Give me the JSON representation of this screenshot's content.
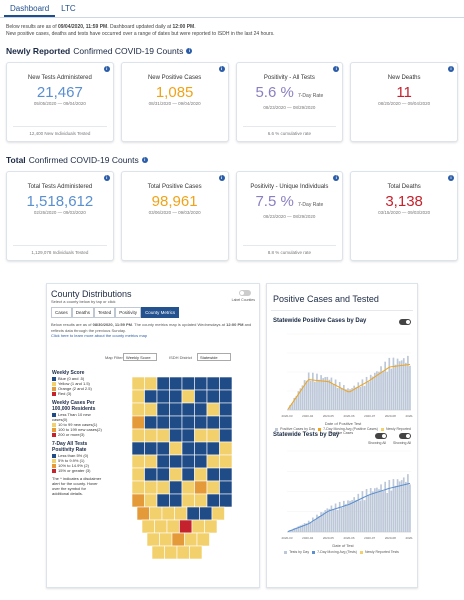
{
  "nav": {
    "tabs": [
      "Dashboard",
      "LTC"
    ],
    "active": "Dashboard"
  },
  "intro": {
    "line1_a": "Below results are as of",
    "line1_date": "09/04/2020, 11:59 PM",
    "line1_b": ". Dashboard updated daily at",
    "line1_time": "12:00 PM",
    "line2": "New positive cases, deaths and tests have occurred over a range of dates but were reported to ISDH in the last 24 hours."
  },
  "newly": {
    "title_bold": "Newly Reported",
    "title_light": "Confirmed COVID-19 Counts",
    "cards": [
      {
        "label": "New Tests Administered",
        "value": "21,467",
        "dates": "05/05/2020 — 09/04/2020",
        "foot": "12,400 New Individuals Tested",
        "color": "#5a8fd0"
      },
      {
        "label": "New Positive Cases",
        "value": "1,085",
        "dates": "08/31/2020 — 09/04/2020",
        "foot": "",
        "color": "#f0a318"
      },
      {
        "label": "Positivity - All Tests",
        "value": "5.6 %",
        "suffix": "7-Day Rate",
        "dates": "08/23/2020 — 08/29/2020",
        "foot": "6.6 % cumulative rate",
        "color": "#8a7fc0"
      },
      {
        "label": "New Deaths",
        "value": "11",
        "dates": "08/20/2020 — 09/04/2020",
        "foot": "",
        "color": "#c4222c"
      }
    ]
  },
  "total": {
    "title_bold": "Total",
    "title_light": "Confirmed COVID-19 Counts",
    "cards": [
      {
        "label": "Total Tests Administered",
        "value": "1,518,612",
        "dates": "02/26/2020 — 09/03/2020",
        "foot": "1,129,078 Individuals Tested",
        "color": "#5a8fd0"
      },
      {
        "label": "Total Positive Cases",
        "value": "98,961",
        "dates": "03/06/2020 — 09/03/2020",
        "foot": "",
        "color": "#f0a318"
      },
      {
        "label": "Positivity - Unique Individuals",
        "value": "7.5 %",
        "suffix": "7-Day Rate",
        "dates": "08/23/2020 — 08/29/2020",
        "foot": "8.8 % cumulative rate",
        "color": "#8a7fc0"
      },
      {
        "label": "Total Deaths",
        "value": "3,138",
        "dates": "03/15/2020 — 09/03/2020",
        "foot": "",
        "color": "#c4222c"
      }
    ]
  },
  "county": {
    "title": "County Distributions",
    "subtitle": "Select a county below by tap or click",
    "toggle_label": "Label Counties",
    "tabs": [
      "Cases",
      "Deaths",
      "Tested",
      "Positivity",
      "County Metrics"
    ],
    "active_tab": "County Metrics",
    "note_a": "Below results are as of",
    "note_date": "08/30/2020, 11:59 PM",
    "note_b": ". The county metrics map is updated Wednesdays at",
    "note_time": "12:00 PM",
    "note_c": "and reflects data through the previous Sunday.",
    "note_link": "Click here to learn more about the county metrics map",
    "map_filter_label": "Map Filter",
    "map_filter_value": "Weekly Score",
    "district_label": "ISDH District",
    "district_value": "Statewide",
    "legend": {
      "weekly_title": "Weekly Score",
      "weekly_items": [
        {
          "label": "Blue (0 and .5)",
          "color": "#1f4b86"
        },
        {
          "label": "Yellow (1 and 1.5)",
          "color": "#f2d06b"
        },
        {
          "label": "Orange (2 and 2.5)",
          "color": "#e59a3a"
        },
        {
          "label": "Red (3)",
          "color": "#c4222c"
        }
      ],
      "cases_title": "Weekly Cases Per 100,000 Residents",
      "cases_items": [
        {
          "label": "Less Than 10 new cases(0)",
          "color": "#1f4b86"
        },
        {
          "label": "10 to 99 new cases(1)",
          "color": "#f2d06b"
        },
        {
          "label": "100 to 199 new cases(2)",
          "color": "#e59a3a"
        },
        {
          "label": "200 or more(3)",
          "color": "#c4222c"
        }
      ],
      "pos_title": "7-Day All Tests Positivity Rate",
      "pos_items": [
        {
          "label": "Less than 5% (0)",
          "color": "#1f4b86"
        },
        {
          "label": "5% to 9.9% (1)",
          "color": "#f2d06b"
        },
        {
          "label": "10% to 14.9% (2)",
          "color": "#e59a3a"
        },
        {
          "label": "15% or greater (3)",
          "color": "#c4222c"
        }
      ],
      "disclaimer": "The ^ indicates a disclaimer alert for the county. Hover over the symbol for additional details."
    }
  },
  "positive": {
    "title": "Positive Cases and Tested",
    "chart1_title": "Statewide Positive Cases by Day",
    "chart1_xlabel": "Date of Positive Test",
    "chart1_legend": [
      "Positive Cases by Day",
      "7-Day Moving Avg (Positive Cases)",
      "Newly Reported Positive Cases"
    ],
    "chart2_title": "Statewide Tests by Day",
    "chart2_xlabel": "Date of Test",
    "chart2_legend": [
      "Tests by Day",
      "7-Day Moving Avg (Tests)",
      "Newly Reported Tests"
    ],
    "toggle_label_a": "Showing All",
    "toggle_label_b": "Showing All",
    "color_bars": "#bcc7d8",
    "color_line_cases": "#f0a318",
    "color_line_tests": "#5a8fd0",
    "chart_data": [
      {
        "type": "bar",
        "title": "Statewide Positive Cases by Day",
        "xlabel": "Date of Positive Test",
        "x": [
          "2020-03",
          "2020-04",
          "2020-05",
          "2020-06",
          "2020-07",
          "2020-08",
          "2020-09"
        ],
        "series": [
          {
            "name": "Positive Cases by Day",
            "values": [
              20,
              650,
              600,
              380,
              600,
              900,
              950
            ]
          },
          {
            "name": "7-Day Moving Avg (Positive Cases)",
            "values": [
              15,
              600,
              560,
              350,
              580,
              850,
              900
            ]
          }
        ],
        "ylim": [
          0,
          1500
        ]
      },
      {
        "type": "bar",
        "title": "Statewide Tests by Day",
        "xlabel": "Date of Test",
        "x": [
          "2020-03",
          "2020-04",
          "2020-05",
          "2020-06",
          "2020-07",
          "2020-08",
          "2020-09"
        ],
        "series": [
          {
            "name": "Tests by Day",
            "values": [
              200,
              3000,
              7000,
              9000,
              12000,
              14000,
              16000
            ]
          },
          {
            "name": "7-Day Moving Avg (Tests)",
            "values": [
              150,
              2500,
              6500,
              8500,
              11500,
              13500,
              15000
            ]
          }
        ],
        "ylim": [
          0,
          25000
        ]
      }
    ]
  }
}
